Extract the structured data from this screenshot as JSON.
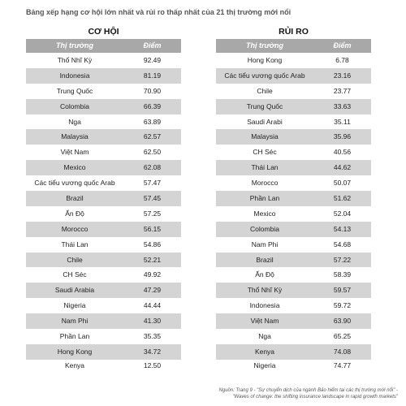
{
  "title": "Bảng xếp hạng cơ hội lớn nhất và rủi ro thấp nhất của 21 thị trường mới nổi",
  "left_table": {
    "heading": "CƠ HỘI",
    "col_market": "Thị trường",
    "col_score": "Điểm",
    "rows": [
      {
        "market": "Thổ Nhĩ Kỳ",
        "score": "92.49"
      },
      {
        "market": "Indonesia",
        "score": "81.19"
      },
      {
        "market": "Trung Quốc",
        "score": "70.90"
      },
      {
        "market": "Colombia",
        "score": "66.39"
      },
      {
        "market": "Nga",
        "score": "63.89"
      },
      {
        "market": "Malaysia",
        "score": "62.57"
      },
      {
        "market": "Việt Nam",
        "score": "62.50"
      },
      {
        "market": "Mexico",
        "score": "62.08"
      },
      {
        "market": "Các tiểu vương quốc Arab",
        "score": "57.47"
      },
      {
        "market": "Brazil",
        "score": "57.45"
      },
      {
        "market": "Ấn Độ",
        "score": "57.25"
      },
      {
        "market": "Morocco",
        "score": "56.15"
      },
      {
        "market": "Thái Lan",
        "score": "54.86"
      },
      {
        "market": "Chile",
        "score": "52.21"
      },
      {
        "market": "CH Séc",
        "score": "49.92"
      },
      {
        "market": "Saudi Arabia",
        "score": "47.29"
      },
      {
        "market": "Nigeria",
        "score": "44.44"
      },
      {
        "market": "Nam Phi",
        "score": "41.30"
      },
      {
        "market": "Phần Lan",
        "score": "35.35"
      },
      {
        "market": "Hong Kong",
        "score": "34.72"
      },
      {
        "market": "Kenya",
        "score": "12.50"
      }
    ]
  },
  "right_table": {
    "heading": "RỦI RO",
    "col_market": "Thị trường",
    "col_score": "Điểm",
    "rows": [
      {
        "market": "Hong Kong",
        "score": "6.78"
      },
      {
        "market": "Các tiểu vương quốc Arab",
        "score": "23.16"
      },
      {
        "market": "Chile",
        "score": "23.77"
      },
      {
        "market": "Trung Quốc",
        "score": "33.63"
      },
      {
        "market": "Saudi Arabi",
        "score": "35.11"
      },
      {
        "market": "Malaysia",
        "score": "35.96"
      },
      {
        "market": "CH Séc",
        "score": "40.56"
      },
      {
        "market": "Thái Lan",
        "score": "44.62"
      },
      {
        "market": "Morocco",
        "score": "50.07"
      },
      {
        "market": "Phần Lan",
        "score": "51.62"
      },
      {
        "market": "Mexico",
        "score": "52.04"
      },
      {
        "market": "Colombia",
        "score": "54.13"
      },
      {
        "market": "Nam Phi",
        "score": "54.68"
      },
      {
        "market": "Brazil",
        "score": "57.22"
      },
      {
        "market": "Ấn Độ",
        "score": "58.39"
      },
      {
        "market": "Thổ Nhĩ Kỳ",
        "score": "59.57"
      },
      {
        "market": "Indonesia",
        "score": "59.72"
      },
      {
        "market": "Việt Nam",
        "score": "63.90"
      },
      {
        "market": "Nga",
        "score": "65.25"
      },
      {
        "market": "Kenya",
        "score": "74.08"
      },
      {
        "market": "Nigeria",
        "score": "74.77"
      }
    ]
  },
  "footer": {
    "line1": "Nguồn: Trang 9 - \"Sự chuyển dịch của ngành Bảo hiểm tại các thị trường mới nổi\" -",
    "line2": "\"Waves of change: the shifting insurance landscape in rapid growth markets\""
  }
}
